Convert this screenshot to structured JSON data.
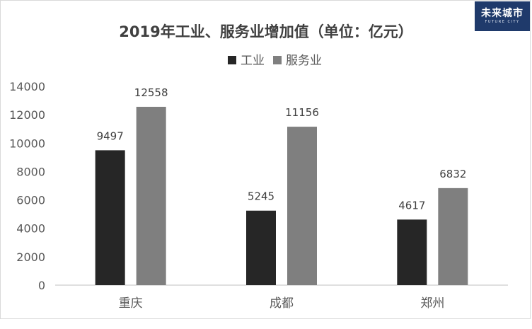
{
  "logo": {
    "main": "未来城市",
    "sub": "FUTURE CITY"
  },
  "chart_data": {
    "type": "bar",
    "title": "2019年工业、服务业增加值（单位：亿元）",
    "categories": [
      "重庆",
      "成都",
      "郑州"
    ],
    "series": [
      {
        "name": "工业",
        "color": "#262626",
        "values": [
          9497,
          5245,
          4617
        ]
      },
      {
        "name": "服务业",
        "color": "#7f7f7f",
        "values": [
          12558,
          11156,
          6832
        ]
      }
    ],
    "ylim": [
      0,
      14000
    ],
    "yticks": [
      0,
      2000,
      4000,
      6000,
      8000,
      10000,
      12000,
      14000
    ],
    "grid": false,
    "legend": "top",
    "data_labels": true
  }
}
